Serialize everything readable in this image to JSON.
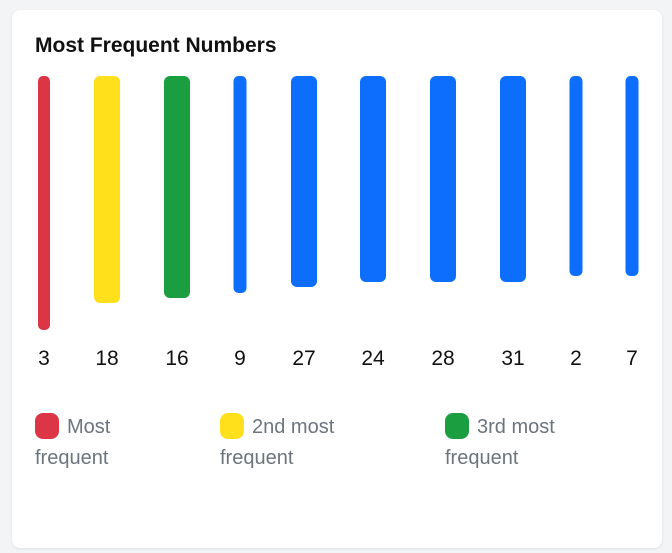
{
  "title": "Most Frequent Numbers",
  "colors": {
    "most": "#dc3545",
    "second": "#ffe01b",
    "third": "#1a9e3f",
    "default": "#0d6efd",
    "label": "#111111",
    "legend_text": "#6c757d"
  },
  "chart_data": {
    "type": "bar",
    "title": "Most Frequent Numbers",
    "categories": [
      "3",
      "18",
      "16",
      "9",
      "27",
      "24",
      "28",
      "31",
      "2",
      "7"
    ],
    "values": [
      254,
      227,
      222,
      217,
      211,
      206,
      206,
      206,
      200,
      200
    ],
    "ranks": [
      "most",
      "second",
      "third",
      "default",
      "default",
      "default",
      "default",
      "default",
      "default",
      "default"
    ],
    "ylim": [
      0,
      254
    ],
    "grid": false
  },
  "legend": {
    "items": [
      {
        "key": "most",
        "label": "Most frequent"
      },
      {
        "key": "second",
        "label": "2nd most frequent"
      },
      {
        "key": "third",
        "label": "3rd most frequent"
      }
    ]
  }
}
